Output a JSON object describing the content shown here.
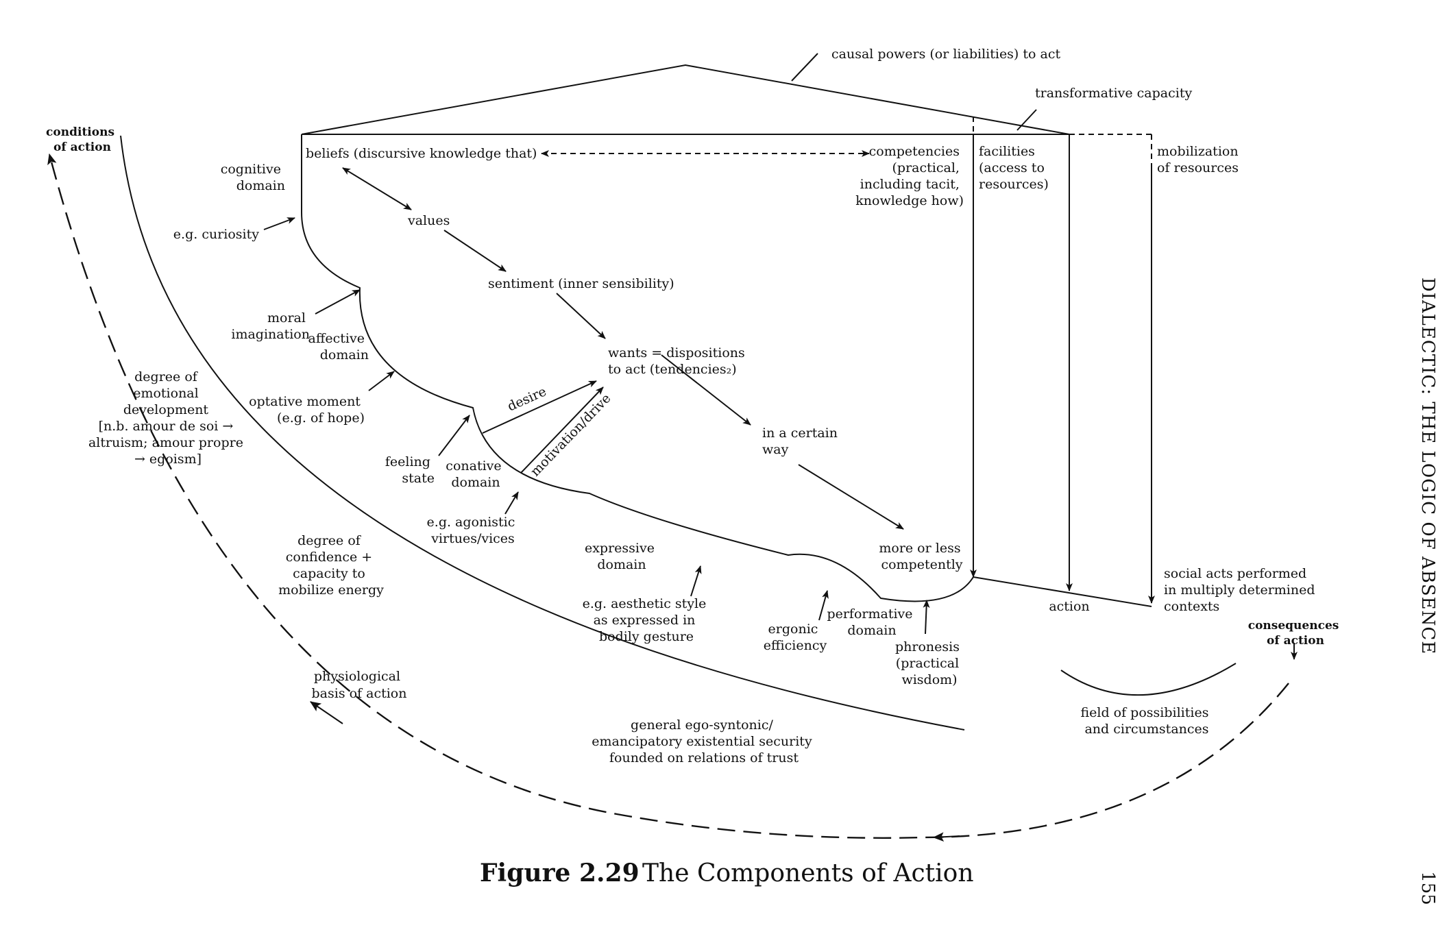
{
  "labels": {
    "conditions_of_action": [
      "conditions",
      "of action"
    ],
    "consequences_of_action": [
      "consequences",
      "of action"
    ],
    "causal_powers": "causal powers (or liabilities) to act",
    "transformative_capacity": "transformative capacity",
    "beliefs": "beliefs (discursive knowledge that)",
    "competencies": [
      "competencies",
      "(practical,",
      "including tacit,",
      "knowledge how)"
    ],
    "facilities": [
      "facilities",
      "(access to",
      "resources)"
    ],
    "mobilization": [
      "mobilization",
      "of resources"
    ],
    "cognitive_domain": [
      "cognitive",
      "domain"
    ],
    "curiosity": "e.g. curiosity",
    "values": "values",
    "sentiment": "sentiment (inner sensibility)",
    "moral_imagination": [
      "moral",
      "imagination"
    ],
    "affective_domain": [
      "affective",
      "domain"
    ],
    "wants": [
      "wants = dispositions",
      "to act (tendencies₂)"
    ],
    "emotional_development": [
      "degree of",
      "emotional",
      "development",
      "[n.b. amour de soi →",
      "altruism; amour propre",
      "→ egoism]"
    ],
    "optative_moment": [
      "optative moment",
      "(e.g. of hope)"
    ],
    "desire": "desire",
    "motivation_drive": "motivation/drive",
    "certain_way": [
      "in a certain",
      "way"
    ],
    "feeling_state": [
      "feeling",
      "state"
    ],
    "conative_domain": [
      "conative",
      "domain"
    ],
    "agonistic": [
      "e.g. agonistic",
      "virtues/vices"
    ],
    "confidence": [
      "degree of",
      "confidence +",
      "capacity to",
      "mobilize energy"
    ],
    "expressive_domain": [
      "expressive",
      "domain"
    ],
    "competently": [
      "more or less",
      "competently"
    ],
    "social_acts": [
      "social acts performed",
      "in multiply determined",
      "contexts"
    ],
    "action": "action",
    "aesthetic_style": [
      "e.g. aesthetic style",
      "as expressed in",
      "bodily gesture"
    ],
    "ergonic": [
      "ergonic",
      "efficiency"
    ],
    "performative_domain": [
      "performative",
      "domain"
    ],
    "phronesis": [
      "phronesis",
      "(practical",
      "wisdom)"
    ],
    "physiological": [
      "physiological",
      "basis of action"
    ],
    "ego_syntonic": [
      "general ego-syntonic/",
      "emancipatory existential security",
      "founded on relations of trust"
    ],
    "field_of_possibilities": [
      "field of possibilities",
      "and circumstances"
    ]
  },
  "caption": {
    "number": "Figure 2.29",
    "title": "The Components of Action"
  },
  "running_head": "DIALECTIC: THE LOGIC OF ABSENCE",
  "page_number": "155"
}
